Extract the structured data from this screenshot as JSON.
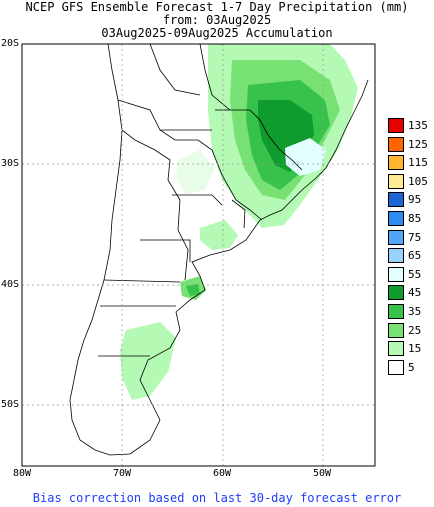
{
  "title": {
    "line1": "NCEP GFS Ensemble Forecast 1-7 Day Precipitation (mm)",
    "line2": "from: 03Aug2025",
    "line3": "03Aug2025-09Aug2025 Accumulation"
  },
  "axes": {
    "lat_labels": [
      "20S",
      "30S",
      "40S",
      "50S"
    ],
    "lon_labels": [
      "80W",
      "70W",
      "60W",
      "50W"
    ]
  },
  "legend": {
    "entries": [
      {
        "label": "135",
        "color": "#e60000"
      },
      {
        "label": "125",
        "color": "#ff6400"
      },
      {
        "label": "115",
        "color": "#ffb432"
      },
      {
        "label": "105",
        "color": "#ffeb96"
      },
      {
        "label": "95",
        "color": "#1e64d2"
      },
      {
        "label": "85",
        "color": "#2e8cf0"
      },
      {
        "label": "75",
        "color": "#50a5f5"
      },
      {
        "label": "65",
        "color": "#96d2fa"
      },
      {
        "label": "55",
        "color": "#e1ffff"
      },
      {
        "label": "45",
        "color": "#0f9b2d"
      },
      {
        "label": "35",
        "color": "#37c34b"
      },
      {
        "label": "25",
        "color": "#78e173"
      },
      {
        "label": "15",
        "color": "#b4fab4"
      },
      {
        "label": "5",
        "color": "#ffffff"
      }
    ]
  },
  "footer": "Bias correction based on last 30-day forecast error"
}
